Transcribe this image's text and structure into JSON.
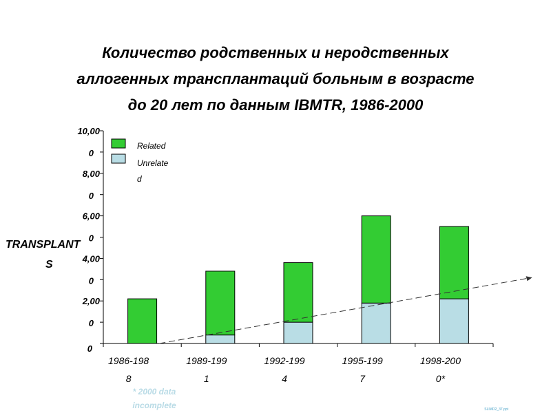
{
  "title_lines": [
    "Количество родственных и неродственных",
    "аллогенных трансплантаций больным в возрасте",
    "до 20 лет по данным IBMTR, 1986-2000"
  ],
  "colors": {
    "related": "#33cc33",
    "unrelated": "#b9dde5",
    "bar_stroke": "#000000",
    "axis": "#000000",
    "note": "#b9dbe6"
  },
  "chart_data": {
    "type": "bar",
    "stacked": true,
    "ylabel_lines": [
      "TRANSPLANT",
      "S"
    ],
    "ylim": [
      0,
      10000
    ],
    "y_ticks": [
      {
        "value": 0,
        "lines": [
          "0"
        ]
      },
      {
        "value": 2000,
        "lines": [
          "2,00",
          "0"
        ]
      },
      {
        "value": 4000,
        "lines": [
          "4,00",
          "0"
        ]
      },
      {
        "value": 6000,
        "lines": [
          "6,00",
          "0"
        ]
      },
      {
        "value": 8000,
        "lines": [
          "8,00",
          "0"
        ]
      },
      {
        "value": 10000,
        "lines": [
          "10,00",
          "0"
        ]
      }
    ],
    "categories": [
      {
        "lines": [
          "1986-198",
          "8"
        ]
      },
      {
        "lines": [
          "1989-199",
          "1"
        ]
      },
      {
        "lines": [
          "1992-199",
          "4"
        ]
      },
      {
        "lines": [
          "1995-199",
          "7"
        ]
      },
      {
        "lines": [
          "1998-200",
          "0*"
        ]
      }
    ],
    "series": [
      {
        "name": "Unrelated",
        "legend_lines": [
          "Unrelate",
          "d"
        ],
        "values": [
          0,
          400,
          1000,
          1900,
          2100
        ]
      },
      {
        "name": "Related",
        "legend_lines": [
          "Related"
        ],
        "values": [
          2100,
          3000,
          2800,
          4100,
          3400
        ]
      }
    ],
    "legend_position": "top-left",
    "trend_arrow": {
      "from": [
        0.7,
        0
      ],
      "to": [
        5.5,
        3100
      ],
      "style": "dashed"
    },
    "grid": false
  },
  "footnote_lines": [
    "* 2000 data",
    "incomplete"
  ],
  "slide_ref": "SLIMD2_37.ppt"
}
